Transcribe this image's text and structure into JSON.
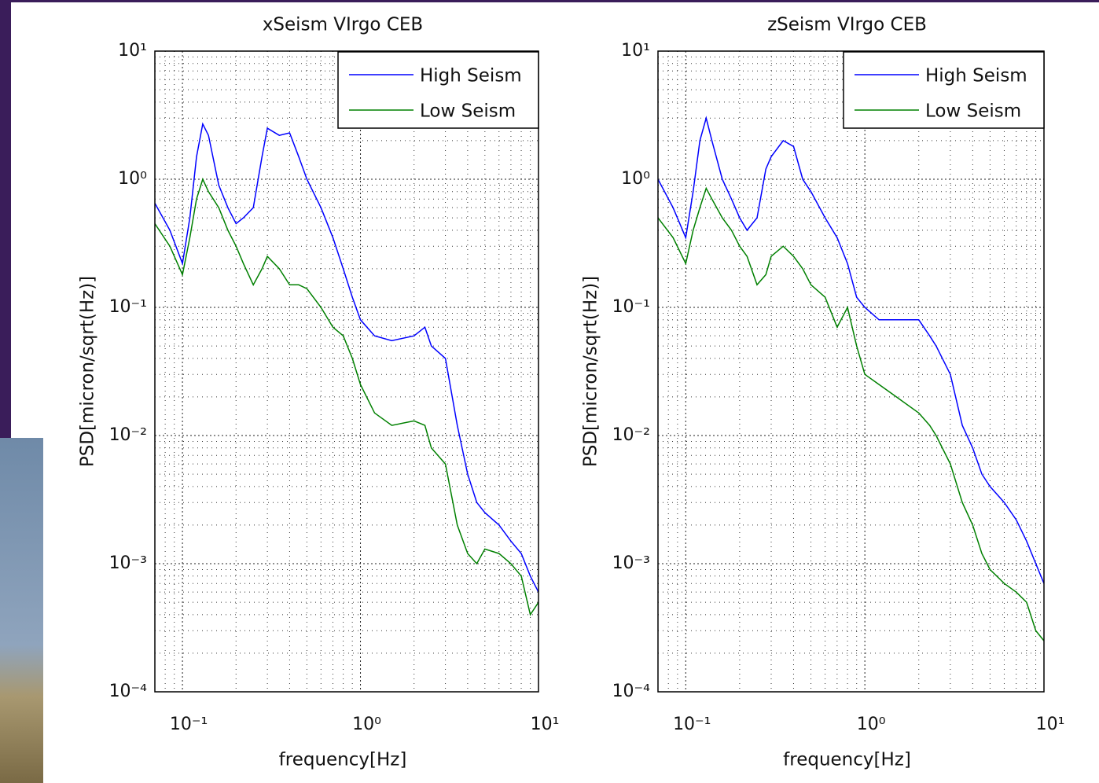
{
  "chart_data": [
    {
      "type": "line",
      "title": "xSeism VIrgo CEB",
      "xlabel": "frequency[Hz]",
      "ylabel": "PSD[micron/sqrt(Hz)]",
      "xscale": "log",
      "yscale": "log",
      "grid": true,
      "legend": "upper right",
      "xlim": [
        0.07,
        10
      ],
      "ylim": [
        0.0001,
        10
      ],
      "xticks": [
        {
          "value": 0.1,
          "label": "10⁻¹"
        },
        {
          "value": 1,
          "label": "10⁰"
        },
        {
          "value": 10,
          "label": "10¹"
        }
      ],
      "yticks": [
        {
          "value": 0.0001,
          "label": "10⁻⁴"
        },
        {
          "value": 0.001,
          "label": "10⁻³"
        },
        {
          "value": 0.01,
          "label": "10⁻²"
        },
        {
          "value": 0.1,
          "label": "10⁻¹"
        },
        {
          "value": 1,
          "label": "10⁰"
        },
        {
          "value": 10,
          "label": "10¹"
        }
      ],
      "x": [
        0.07,
        0.085,
        0.1,
        0.11,
        0.12,
        0.13,
        0.14,
        0.16,
        0.18,
        0.2,
        0.22,
        0.25,
        0.28,
        0.3,
        0.35,
        0.4,
        0.45,
        0.5,
        0.6,
        0.7,
        0.8,
        0.9,
        1.0,
        1.2,
        1.5,
        2.0,
        2.3,
        2.5,
        3,
        3.5,
        4,
        4.5,
        5,
        6,
        7,
        8,
        9,
        10
      ],
      "series": [
        {
          "name": "High Seism",
          "color": "#0000ff",
          "values": [
            0.65,
            0.4,
            0.22,
            0.5,
            1.5,
            2.7,
            2.2,
            0.9,
            0.6,
            0.45,
            0.5,
            0.6,
            1.5,
            2.5,
            2.2,
            2.3,
            1.5,
            1.0,
            0.6,
            0.35,
            0.2,
            0.12,
            0.08,
            0.06,
            0.055,
            0.06,
            0.07,
            0.05,
            0.04,
            0.012,
            0.005,
            0.003,
            0.0025,
            0.002,
            0.0015,
            0.0012,
            0.0008,
            0.0006
          ]
        },
        {
          "name": "Low Seism",
          "color": "#008000",
          "values": [
            0.45,
            0.3,
            0.18,
            0.35,
            0.7,
            1.0,
            0.8,
            0.6,
            0.4,
            0.3,
            0.22,
            0.15,
            0.2,
            0.25,
            0.2,
            0.15,
            0.15,
            0.14,
            0.1,
            0.07,
            0.06,
            0.04,
            0.025,
            0.015,
            0.012,
            0.013,
            0.012,
            0.008,
            0.006,
            0.002,
            0.0012,
            0.001,
            0.0013,
            0.0012,
            0.001,
            0.0008,
            0.0004,
            0.0005
          ]
        }
      ]
    },
    {
      "type": "line",
      "title": "zSeism VIrgo CEB",
      "xlabel": "frequency[Hz]",
      "ylabel": "PSD[micron/sqrt(Hz)]",
      "xscale": "log",
      "yscale": "log",
      "grid": true,
      "legend": "upper right",
      "xlim": [
        0.07,
        10
      ],
      "ylim": [
        0.0001,
        10
      ],
      "xticks": [
        {
          "value": 0.1,
          "label": "10⁻¹"
        },
        {
          "value": 1,
          "label": "10⁰"
        },
        {
          "value": 10,
          "label": "10¹"
        }
      ],
      "yticks": [
        {
          "value": 0.0001,
          "label": "10⁻⁴"
        },
        {
          "value": 0.001,
          "label": "10⁻³"
        },
        {
          "value": 0.01,
          "label": "10⁻²"
        },
        {
          "value": 0.1,
          "label": "10⁻¹"
        },
        {
          "value": 1,
          "label": "10⁰"
        },
        {
          "value": 10,
          "label": "10¹"
        }
      ],
      "x": [
        0.07,
        0.085,
        0.1,
        0.11,
        0.12,
        0.13,
        0.14,
        0.16,
        0.18,
        0.2,
        0.22,
        0.25,
        0.28,
        0.3,
        0.35,
        0.4,
        0.45,
        0.5,
        0.6,
        0.7,
        0.8,
        0.9,
        1.0,
        1.2,
        1.5,
        2.0,
        2.3,
        2.5,
        3,
        3.5,
        4,
        4.5,
        5,
        6,
        7,
        8,
        9,
        10
      ],
      "series": [
        {
          "name": "High Seism",
          "color": "#0000ff",
          "values": [
            1.0,
            0.6,
            0.35,
            0.8,
            2.0,
            3.0,
            2.0,
            1.0,
            0.7,
            0.5,
            0.4,
            0.5,
            1.2,
            1.5,
            2.0,
            1.8,
            1.0,
            0.8,
            0.5,
            0.35,
            0.22,
            0.12,
            0.1,
            0.08,
            0.08,
            0.08,
            0.06,
            0.05,
            0.03,
            0.012,
            0.008,
            0.005,
            0.004,
            0.003,
            0.0022,
            0.0015,
            0.001,
            0.0007
          ]
        },
        {
          "name": "Low Seism",
          "color": "#008000",
          "values": [
            0.5,
            0.35,
            0.22,
            0.4,
            0.6,
            0.85,
            0.7,
            0.5,
            0.4,
            0.3,
            0.25,
            0.15,
            0.18,
            0.25,
            0.3,
            0.25,
            0.2,
            0.15,
            0.12,
            0.07,
            0.1,
            0.05,
            0.03,
            0.025,
            0.02,
            0.015,
            0.012,
            0.01,
            0.006,
            0.003,
            0.002,
            0.0012,
            0.0009,
            0.0007,
            0.0006,
            0.0005,
            0.0003,
            0.00025
          ]
        }
      ]
    }
  ]
}
